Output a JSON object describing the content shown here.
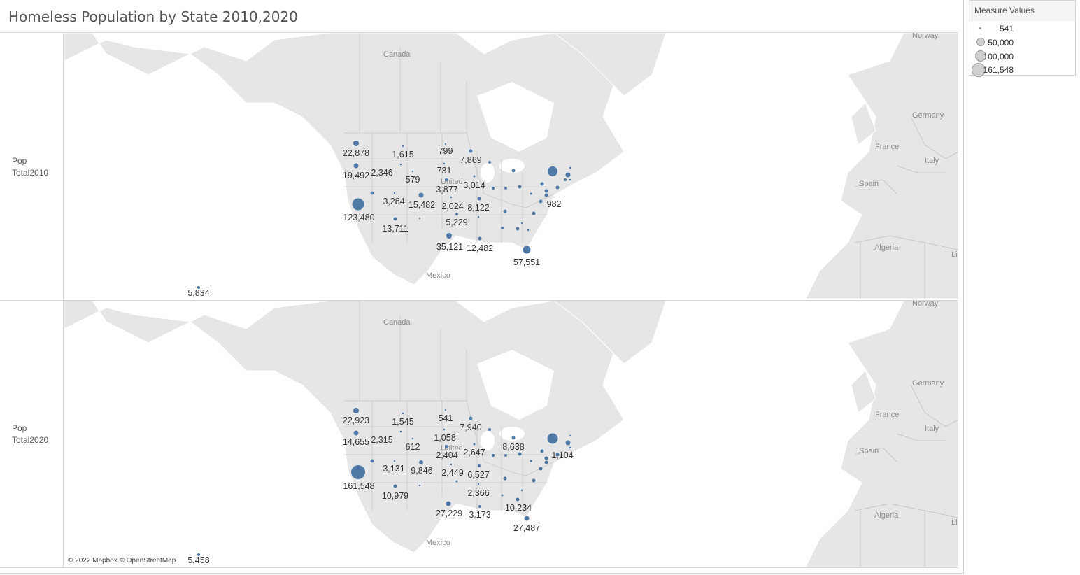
{
  "title": "Homeless Population by State 2010,2020",
  "legend": {
    "title": "Measure Values",
    "items": [
      "541",
      "50,000",
      "100,000",
      "161,548"
    ]
  },
  "rows": [
    {
      "label_line1": "Pop",
      "label_line2": "Total2010"
    },
    {
      "label_line1": "Pop",
      "label_line2": "Total2020"
    }
  ],
  "geo_labels": [
    "Canada",
    "Mexico",
    "Norway",
    "Germany",
    "France",
    "Italy",
    "Spain",
    "Algeria",
    "Li",
    "United"
  ],
  "map2010": [
    "22,878",
    "1,615",
    "799",
    "7,869",
    "19,492",
    "2,346",
    "731",
    "579",
    "3,877",
    "3,014",
    "3,284",
    "15,482",
    "123,480",
    "2,024",
    "8,122",
    "982",
    "13,711",
    "5,229",
    "35,121",
    "12,482",
    "57,551",
    "5,834"
  ],
  "map2020": [
    "22,923",
    "1,545",
    "541",
    "7,940",
    "14,655",
    "2,315",
    "1,058",
    "612",
    "2,404",
    "2,647",
    "8,638",
    "3,131",
    "9,846",
    "2,449",
    "6,527",
    "1,104",
    "161,548",
    "10,979",
    "2,366",
    "10,234",
    "27,229",
    "3,173",
    "27,487",
    "5,458"
  ],
  "attribution": "© 2022 Mapbox © OpenStreetMap",
  "colors": {
    "bubble": "#4e79a7",
    "land": "#e6e6e6",
    "border": "#bdbdbd"
  }
}
